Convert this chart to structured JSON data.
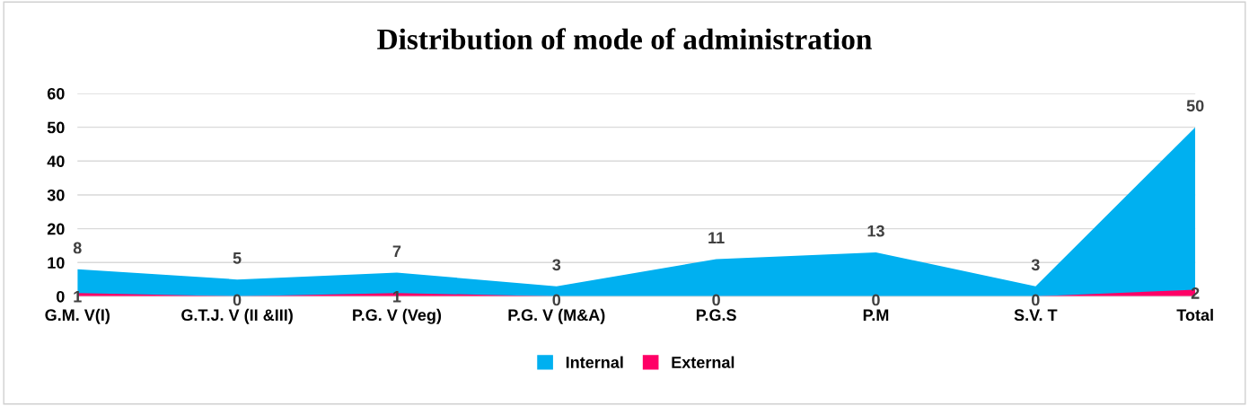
{
  "chart_data": {
    "type": "area",
    "title": "Distribution of mode of administration",
    "categories": [
      "G.M. V(I)",
      "G.T.J. V (II &III)",
      "P.G. V (Veg)",
      "P.G. V (M&A)",
      "P.G.S",
      "P.M",
      "S.V. T",
      "Total"
    ],
    "series": [
      {
        "name": "Internal",
        "color": "#00b0f0",
        "values": [
          8,
          5,
          7,
          3,
          11,
          13,
          3,
          50
        ]
      },
      {
        "name": "External",
        "color": "#ff0066",
        "values": [
          1,
          0,
          1,
          0,
          0,
          0,
          0,
          2
        ]
      }
    ],
    "ylim": [
      0,
      60
    ],
    "yticks": [
      0,
      10,
      20,
      30,
      40,
      50,
      60
    ],
    "grid": "y",
    "legend": "bottom",
    "data_labels": true
  }
}
